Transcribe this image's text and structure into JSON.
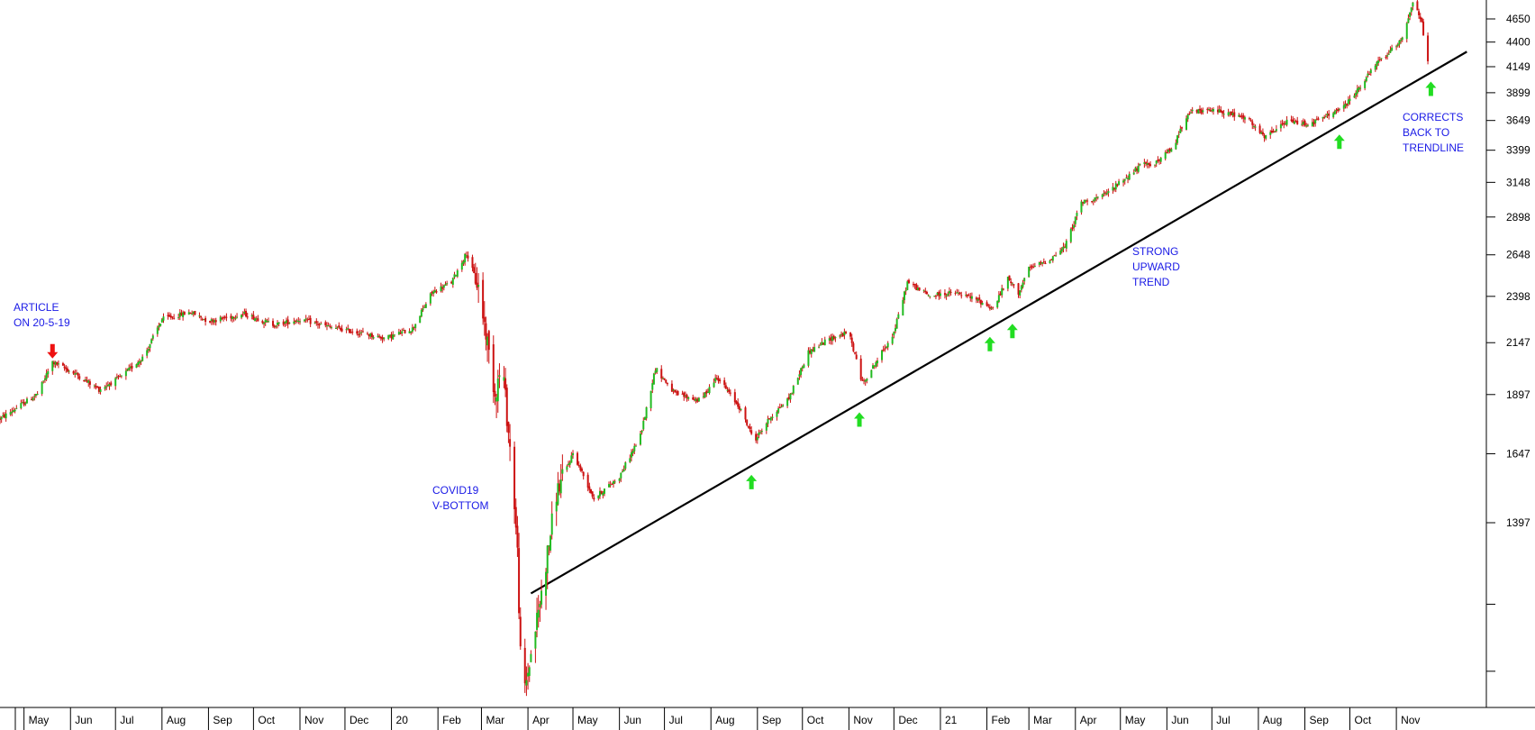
{
  "chart_data": {
    "type": "candlestick",
    "title": "",
    "xlabel": "",
    "ylabel": "",
    "yscale": "log",
    "y_ticks": [
      1397,
      1647,
      1897,
      2147,
      2398,
      2648,
      2898,
      3148,
      3399,
      3649,
      3899,
      4149,
      4400,
      4650
    ],
    "x_ticks": [
      "May",
      "Jun",
      "Jul",
      "Aug",
      "Sep",
      "Oct",
      "Nov",
      "Dec",
      "20",
      "Feb",
      "Mar",
      "Apr",
      "May",
      "Jun",
      "Jul",
      "Aug",
      "Sep",
      "Oct",
      "Nov",
      "Dec",
      "21",
      "Feb",
      "Mar",
      "Apr",
      "May",
      "Jun",
      "Jul",
      "Aug",
      "Sep",
      "Oct",
      "Nov"
    ],
    "x_start": "2019-04-15",
    "x_end": "2021-12-31",
    "colors": {
      "up": "#22bb22",
      "down": "#cc1111",
      "trendline": "#000000",
      "annotation": "#1a1ae6",
      "arrow_up": "#22dd22",
      "arrow_down": "#ee1111"
    },
    "price_path": [
      [
        "2019-04-15",
        1790
      ],
      [
        "2019-05-10",
        1900
      ],
      [
        "2019-05-20",
        2050
      ],
      [
        "2019-06-05",
        1990
      ],
      [
        "2019-06-20",
        1920
      ],
      [
        "2019-07-05",
        1980
      ],
      [
        "2019-07-20",
        2080
      ],
      [
        "2019-08-01",
        2270
      ],
      [
        "2019-08-20",
        2310
      ],
      [
        "2019-09-01",
        2260
      ],
      [
        "2019-09-25",
        2300
      ],
      [
        "2019-10-15",
        2240
      ],
      [
        "2019-11-01",
        2270
      ],
      [
        "2019-11-20",
        2230
      ],
      [
        "2019-12-10",
        2200
      ],
      [
        "2019-12-28",
        2170
      ],
      [
        "2020-01-15",
        2220
      ],
      [
        "2020-01-28",
        2420
      ],
      [
        "2020-02-10",
        2480
      ],
      [
        "2020-02-20",
        2660
      ],
      [
        "2020-02-28",
        2450
      ],
      [
        "2020-03-05",
        2150
      ],
      [
        "2020-03-10",
        1900
      ],
      [
        "2020-03-15",
        2050
      ],
      [
        "2020-03-18",
        1800
      ],
      [
        "2020-03-22",
        1550
      ],
      [
        "2020-03-25",
        1300
      ],
      [
        "2020-03-28",
        900
      ],
      [
        "2020-04-02",
        1000
      ],
      [
        "2020-04-10",
        1180
      ],
      [
        "2020-04-20",
        1500
      ],
      [
        "2020-05-01",
        1650
      ],
      [
        "2020-05-15",
        1480
      ],
      [
        "2020-06-01",
        1560
      ],
      [
        "2020-06-15",
        1720
      ],
      [
        "2020-06-25",
        2020
      ],
      [
        "2020-07-08",
        1900
      ],
      [
        "2020-07-25",
        1870
      ],
      [
        "2020-08-05",
        1980
      ],
      [
        "2020-08-20",
        1840
      ],
      [
        "2020-08-30",
        1700
      ],
      [
        "2020-09-10",
        1800
      ],
      [
        "2020-09-22",
        1880
      ],
      [
        "2020-10-05",
        2100
      ],
      [
        "2020-10-20",
        2170
      ],
      [
        "2020-11-01",
        2200
      ],
      [
        "2020-11-10",
        1950
      ],
      [
        "2020-11-20",
        2060
      ],
      [
        "2020-12-01",
        2200
      ],
      [
        "2020-12-10",
        2480
      ],
      [
        "2020-12-25",
        2400
      ],
      [
        "2021-01-10",
        2420
      ],
      [
        "2021-01-25",
        2380
      ],
      [
        "2021-02-05",
        2330
      ],
      [
        "2021-02-15",
        2500
      ],
      [
        "2021-02-22",
        2420
      ],
      [
        "2021-03-01",
        2560
      ],
      [
        "2021-03-15",
        2620
      ],
      [
        "2021-03-25",
        2700
      ],
      [
        "2021-04-05",
        3000
      ],
      [
        "2021-04-20",
        3050
      ],
      [
        "2021-05-01",
        3150
      ],
      [
        "2021-05-15",
        3280
      ],
      [
        "2021-05-25",
        3300
      ],
      [
        "2021-06-05",
        3420
      ],
      [
        "2021-06-15",
        3720
      ],
      [
        "2021-07-05",
        3740
      ],
      [
        "2021-07-25",
        3660
      ],
      [
        "2021-08-05",
        3500
      ],
      [
        "2021-08-20",
        3640
      ],
      [
        "2021-09-05",
        3620
      ],
      [
        "2021-09-20",
        3720
      ],
      [
        "2021-09-28",
        3780
      ],
      [
        "2021-10-10",
        4000
      ],
      [
        "2021-10-20",
        4200
      ],
      [
        "2021-10-28",
        4300
      ],
      [
        "2021-11-05",
        4450
      ],
      [
        "2021-11-12",
        4850
      ],
      [
        "2021-11-18",
        4600
      ],
      [
        "2021-11-22",
        4180
      ]
    ],
    "trendline": [
      [
        "2020-04-03",
        1180
      ],
      [
        "2021-12-18",
        4300
      ]
    ],
    "annotations": [
      {
        "id": "article",
        "lines": [
          "ARTICLE",
          "ON 20-5-19"
        ]
      },
      {
        "id": "covid",
        "lines": [
          "COVID19",
          "V-BOTTOM"
        ]
      },
      {
        "id": "trend",
        "lines": [
          "STRONG",
          "UPWARD",
          "TREND"
        ]
      },
      {
        "id": "corrects",
        "lines": [
          "CORRECTS",
          "BACK TO",
          "TRENDLINE"
        ]
      }
    ],
    "support_arrows": [
      "2020-08-28",
      "2020-11-08",
      "2021-02-03",
      "2021-02-18",
      "2021-09-24",
      "2021-11-24"
    ],
    "signal_arrow": "2019-05-20"
  }
}
